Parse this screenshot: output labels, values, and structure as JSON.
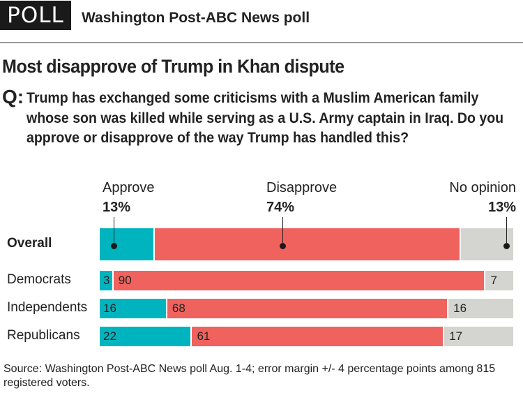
{
  "header": {
    "badge": "POLL",
    "title": "Washington Post-ABC News poll"
  },
  "headline": "Most disapprove of Trump in Khan dispute",
  "question": {
    "prefix": "Q:",
    "text": "Trump has exchanged some criticisms with a Muslim American family whose son was killed while serving as a U.S. Army captain in Iraq. Do you approve or disapprove of the way Trump has handled this?"
  },
  "colors": {
    "approve": "#00b4bf",
    "disapprove": "#f0625e",
    "no_opinion": "#d4d4d0"
  },
  "chart_data": {
    "type": "bar",
    "orientation": "horizontal-stacked-100",
    "title": "Most disapprove of Trump in Khan dispute",
    "series_names": [
      "Approve",
      "Disapprove",
      "No opinion"
    ],
    "overall_labels": [
      "13%",
      "74%",
      "13%"
    ],
    "rows": [
      {
        "label": "Overall",
        "bold": true,
        "values": [
          13,
          74,
          13
        ],
        "show_values": false
      },
      {
        "label": "Democrats",
        "bold": false,
        "values": [
          3,
          90,
          7
        ],
        "show_values": true
      },
      {
        "label": "Independents",
        "bold": false,
        "values": [
          16,
          68,
          16
        ],
        "show_values": true
      },
      {
        "label": "Republicans",
        "bold": false,
        "values": [
          22,
          61,
          17
        ],
        "show_values": true
      }
    ],
    "xlim": [
      0,
      100
    ],
    "legend": "top"
  },
  "source": "Source: Washington Post-ABC News poll Aug. 1-4; error margin +/- 4 percentage points among 815 registered voters."
}
